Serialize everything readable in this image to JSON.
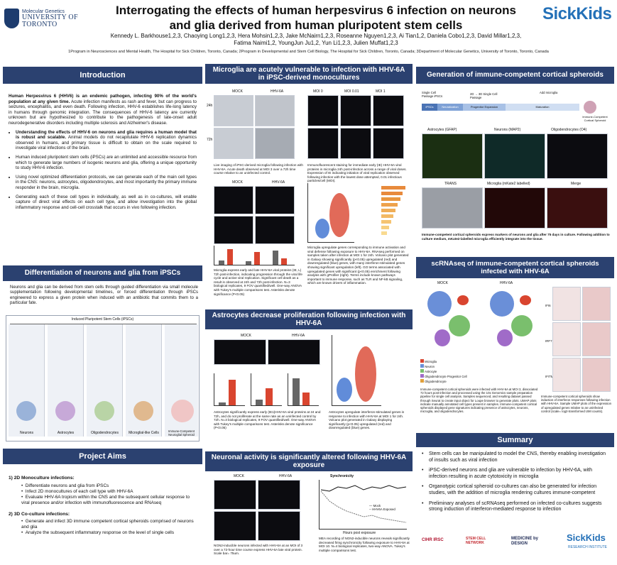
{
  "header": {
    "uoft_sub": "Molecular Genetics",
    "uoft_name": "UNIVERSITY OF TORONTO",
    "title": "Interrogating the effects of human herpesvirus 6 infection on neurons and glia derived from human pluripotent stem cells",
    "sickkids": "SickKids",
    "authors": "Kennedy L. Barkhouse1,2,3, Chaoying Long1,2,3, Hera Mohsin1,2,3, Jake McNairn1,2,3, Roseanne Nguyen1,2,3, Ai Tian1,2, Daniela Cobo1,2,3, David Millar1,2,3, Fatima Naimi1,2, YoungJun Ju1,2, Yun Li1,2,3, Julien Muffat1,2,3",
    "affiliations": "1Program in Neurosciences and Mental Health, The Hospital for Sick Children, Toronto, Canada; 2Program in Developmental and Stem Cell Biology, The Hospital for Sick Children, Toronto, Canada; 3Department of Molecular Genetics, University of Toronto, Toronto, Canada"
  },
  "intro": {
    "heading": "Introduction",
    "p1_bold": "Human Herpesvirus 6 (HHV6) is an endemic pathogen, infecting 90% of the world's population at any given time.",
    "p1_rest": " Acute infection manifests as rash and fever, but can progress to seizures, encephalitis, and even death. Following infection, HHV-6 establishes life-long latency in humans through genomic integration. The consequences of HHV-6 latency are currently unknown but are hypothesized to contribute to the pathogenesis of late-onset adult neurodegenerative disorders including multiple sclerosis and Alzheimer's disease.",
    "b1_bold": "Understanding the effects of HHV-6 on neurons and glia requires a human model that is robust and scalable.",
    "b1_rest": " Animal models do not recapitulate HHV-6 replication dynamics observed in humans, and primary tissue is difficult to obtain on the scale required to investigate viral infections of the brain.",
    "b2": "Human induced pluripotent stem cells (iPSCs) are an unlimited and accessible resource from which to generate large numbers of isogenic neurons and glia, offering a unique opportunity to study HHV-6 infection.",
    "b3": "Using novel optimized differentiation protocols, we can generate each of the main cell types in the CNS: neurons, astrocytes, oligodendrocytes, and most importantly the primary immune responder in the brain, microglia.",
    "b4": "Generating each of these cell types in individually, as well as in co-cultures, will enable capture of direct viral effects on each cell type, and allow investigation into the global inflammatory response and cell-cell crosstalk that occurs in vivo following infection."
  },
  "diff": {
    "heading": "Differentiation of neurons and glia from iPSCs",
    "text": "Neurons and glia can be derived from stem cells through guided differentiation via small molecule supplementation following developmental timelines, or forced differentiation through iPSCs engineered to express a given protein when induced with an antibiotic that commits them to a particular fate.",
    "diagram_title": "Induced Pluripotent Stem Cells (iPSCs)",
    "cols": [
      "Neurons",
      "Astrocytes",
      "Oligodendrocytes",
      "Microglial-like Cells",
      "Immune-Competent Neuroglial Spheroid"
    ]
  },
  "aims": {
    "heading": "Project Aims",
    "h1": "1)  2D Monoculture infections:",
    "a1": [
      "Differentiate neurons and glia from iPSCs",
      "Infect 2D monocultures of each cell type with HHV-6A",
      "Evaluate HHV-6A tropism within the CNS and the subsequent cellular response to viral presence and/or infection with immunofluorescence and RNAseq"
    ],
    "h2": "2)  3D Co-culture infections:",
    "a2": [
      "Generate and infect 3D immune competent cortical spheroids comprised of neurons and glia",
      "Analyze the subsequent inflammatory response on the level of single cells"
    ]
  },
  "micro": {
    "heading": "Microglia are acutely vulnerable to infection with HHV-6A in iPSC-derived monocultures",
    "mock": "MOCK",
    "hhv": "HHV-6A",
    "moi": [
      "MOI 0",
      "MOI 0.01",
      "MOI 1"
    ],
    "cap1": "Live imaging of iPSC-derived microglia following infection with HHV-6A. Acute death observed at MOI 3 over a 72h time course relative to an uninfected control.",
    "cap2": "Immunofluorescent staining for immediate early (IE) HHV-6A viral proteins in microglia 24h post-infection across a range of viral doses. Expression of IE indicating initiation of viral replication observed following infection with the lowest dose attempted, 0.01 infectious particles/cell (MOI).",
    "cap3": "Microglia express early and late HHV-6A viral proteins (IE, L) 72h post-infection, indicating progression through the viral life cycle and active viral replication. Significant cell death as a result is observed at 24h and 72h post-infection. N=3 biological replicates, 9 FOV quantified/well. One-way ANOVA with Tukey's multiple comparisons test. Asterisks denote significance (P<0.05)",
    "cap4": "Microglia upregulate genes corresponding to immune activation and viral defense following exposure to HHV-6A. RNAseq performed on samples taken after infection at MOI 1 for 24h. Volcano plot generated in Galaxy showing significantly (p<0.05) upregulated (red) and downregulated (blue) genes, with many interferon-stimulated genes showing significant upregulation (left). GO terms associated with upregulated genes with significant (p<0.05) enrichment following analysis with gProfiler (right). Terms include known pathways important to immune response, such as TLR and NF-kB signaling, which are known drivers of inflammation.",
    "t24": "24h",
    "t72": "72h"
  },
  "astro": {
    "heading": "Astrocytes decrease proliferation following infection with HHV-6A",
    "mock": "MOCK",
    "hhv": "HHV-6A",
    "cap1": "Astrocytes significantly express early (IE1)HHV-6A viral proteins at 24 and 72h, and do not proliferate at the same rate as an uninfected control by 72h. N=3 biological replicates, 9 FOV quantified/well. One-way ANOVA with Tukey's multiple comparisons test. Asterisks denote significance (P<0.05)",
    "cap2": "Astrocytes upregulate interferon-stimulated genes in response to infection with HHV-6A at MOI 1 for 24h. Volcano plot generated in Galaxy displaying significantly (p<0.05) upregulated (red) and downregulated (blue) genes."
  },
  "neuro": {
    "heading": "Neuronal activity is significantly altered following HHV-6A exposure",
    "mock": "MOCK",
    "hhv": "HHV-6A",
    "chart_title": "Synchronicity",
    "xlabel": "Hours post exposure",
    "legend": [
      "Mock",
      "HHV6A Exposed"
    ],
    "cap1": "NGN2-inducible neurons infected with HHV-6A at an MOI of 3 over a 72-hour time course express HHV-6A late viral protein. Scale bar= 75um.",
    "cap2": "MEA recording of NGN2-inducible neurons reveals significantly decreased firing synchronicity following exposure to HHV-6A at MOI 10. N=4 biological replicates, two-way ANOVA. Tukey's multiple comparisons test."
  },
  "gen": {
    "heading": "Generation of immune-competent cortical spheroids",
    "stages": [
      "iPSCs",
      "Neuralization",
      "Progenitor Expansion",
      "Maturation"
    ],
    "labels": [
      "Single Cell Passage iPSCs",
      "2D → 3D Single Cell Passage",
      "Add microglia",
      "Immune-Competent Cortical Spheroid"
    ],
    "imgs": [
      "Astrocytes (GFAP)",
      "Neurons (MAP2)",
      "Oligodendrocytes (O4)",
      "TRANS",
      "Microglia (mKate2 labelled)",
      "Merge"
    ],
    "cap": "Immune-competent cortical spheroids express markers of neurons and glia after 75 days in culture. Following addition to culture medium, mKate2-labelled microglia efficiently integrate into the tissue."
  },
  "scrna": {
    "heading": "scRNAseq of immune-competent cortical spheroids infected with HHV-6A",
    "mock": "MOCK",
    "hhv": "HHV-6A",
    "legend": [
      "Microglia",
      "Neuron",
      "Astrocyte",
      "Oligodendrocyte Progenitor Cell",
      "Oligodendrocyte"
    ],
    "genes": [
      "IFI6",
      "IRF7",
      "IFITM3"
    ],
    "cap1": "Immune-competent cortical spheroids were infected with HHV-6A at MOI 3, dissociated 72 hours post-infection and processed using the 10x Genomics sample preparation pipeline for single cell analysis. Samples sequenced, and resulting dataset passed through Seurat to create input object for Loupe browser to generate plots. UMAP plots indicate manually annotated cell types present in samples. Immune-competent cortical spheroids displayed gene signatures indicating presence of astrocytes, neurons, microglia, and oligodendrocytes.",
    "cap2": "Immune-competent cortical spheroids show induction of interferon responses following infection with HHV-6A. Sample UMAP plots of the expression of upregulated genes relative to an uninfected control (scale= log2-transformed UMI counts)."
  },
  "summary": {
    "heading": "Summary",
    "items": [
      "Stem cells can be manipulated to model the CNS, thereby enabling investigation of insults such as viral infection",
      "iPSC-derived neurons and glia are vulnerable to infection by HHV-6A, with infection resulting in acute cytotoxicity in microglia",
      "Organotypic cortical spheroid co-cultures can also be generated for infection studies, with the addition of microglia rendering cultures immune-competent",
      "Preliminary analyses of scRNAseq performed on infected co-cultures suggests strong induction of interferon-mediated response to infection"
    ]
  },
  "logos": {
    "cihr": "CIHR IRSC",
    "stem": "STEM CELL NETWORK",
    "mbd": "MEDICINE by DESIGN",
    "sk": "SickKids",
    "sk_sub": "RESEARCH INSTITUTE"
  },
  "colors": {
    "header_band": "#2b4170",
    "sickkids_blue": "#2471b8",
    "up": "#d9452f",
    "down": "#3a6fd0"
  }
}
